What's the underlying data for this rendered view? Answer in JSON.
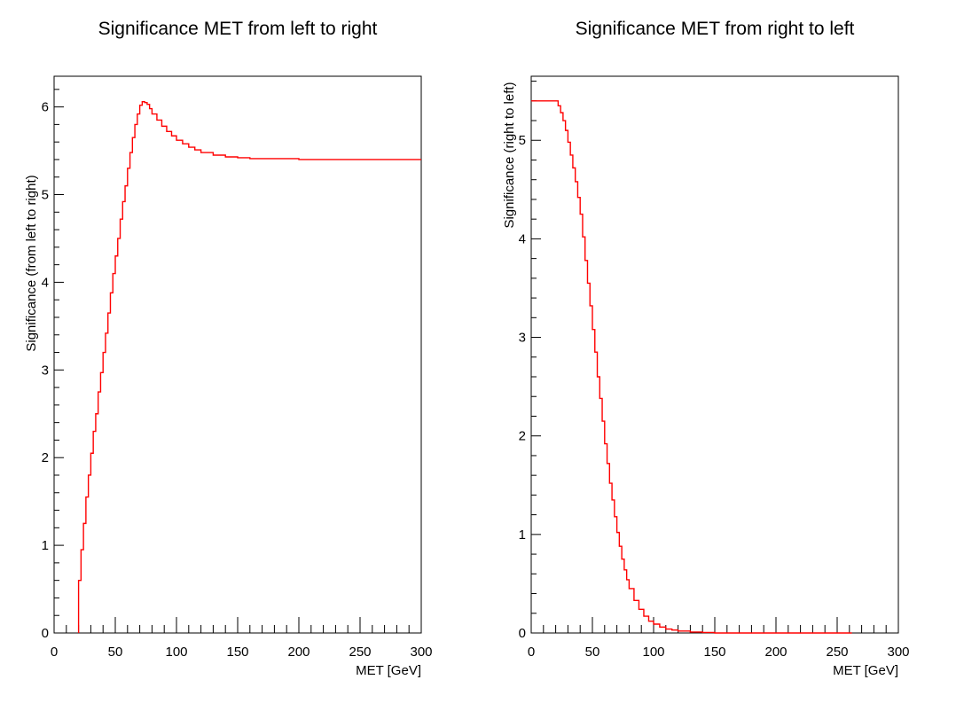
{
  "chart_data": [
    {
      "type": "line",
      "title": "Significance MET from left to right",
      "xlabel": "MET [GeV]",
      "ylabel": "Significance (from left to right)",
      "xlim": [
        0,
        300
      ],
      "ylim": [
        0,
        6.35
      ],
      "x_ticks": [
        0,
        50,
        100,
        150,
        200,
        250,
        300
      ],
      "y_ticks": [
        0,
        1,
        2,
        3,
        4,
        5,
        6
      ],
      "grid": false,
      "legend": "none",
      "line_color": "#ff0000",
      "series": [
        {
          "x": [
            20,
            22,
            24,
            26,
            28,
            30,
            32,
            34,
            36,
            38,
            40,
            42,
            44,
            46,
            48,
            50,
            52,
            54,
            56,
            58,
            60,
            62,
            64,
            66,
            68,
            70,
            72,
            74,
            76,
            78,
            80,
            84,
            88,
            92,
            96,
            100,
            105,
            110,
            115,
            120,
            130,
            140,
            150,
            160,
            180,
            200,
            250,
            300
          ],
          "values": [
            0.6,
            0.95,
            1.25,
            1.55,
            1.8,
            2.05,
            2.3,
            2.5,
            2.75,
            2.97,
            3.2,
            3.42,
            3.65,
            3.88,
            4.1,
            4.3,
            4.5,
            4.72,
            4.92,
            5.1,
            5.3,
            5.48,
            5.65,
            5.8,
            5.92,
            6.02,
            6.06,
            6.05,
            6.03,
            5.98,
            5.92,
            5.85,
            5.78,
            5.72,
            5.67,
            5.62,
            5.58,
            5.54,
            5.51,
            5.48,
            5.45,
            5.43,
            5.42,
            5.41,
            5.41,
            5.4,
            5.4,
            5.4
          ]
        }
      ]
    },
    {
      "type": "line",
      "title": "Significance MET from right to left",
      "xlabel": "MET [GeV]",
      "ylabel": "Significance (right to left)",
      "xlim": [
        0,
        300
      ],
      "ylim": [
        0,
        5.65
      ],
      "x_ticks": [
        0,
        50,
        100,
        150,
        200,
        250,
        300
      ],
      "y_ticks": [
        0,
        1,
        2,
        3,
        4,
        5
      ],
      "grid": false,
      "legend": "none",
      "line_color": "#ff0000",
      "series": [
        {
          "x": [
            0,
            10,
            20,
            22,
            24,
            26,
            28,
            30,
            32,
            34,
            36,
            38,
            40,
            42,
            44,
            46,
            48,
            50,
            52,
            54,
            56,
            58,
            60,
            62,
            64,
            66,
            68,
            70,
            72,
            74,
            76,
            78,
            80,
            84,
            88,
            92,
            96,
            100,
            105,
            110,
            115,
            120,
            130,
            140,
            150,
            200,
            262
          ],
          "values": [
            5.4,
            5.4,
            5.4,
            5.35,
            5.28,
            5.2,
            5.1,
            4.98,
            4.85,
            4.72,
            4.58,
            4.42,
            4.25,
            4.02,
            3.78,
            3.55,
            3.32,
            3.08,
            2.85,
            2.6,
            2.38,
            2.15,
            1.92,
            1.72,
            1.52,
            1.35,
            1.18,
            1.02,
            0.88,
            0.75,
            0.64,
            0.54,
            0.45,
            0.33,
            0.24,
            0.17,
            0.12,
            0.09,
            0.06,
            0.04,
            0.03,
            0.02,
            0.01,
            0.005,
            0.0,
            0.0,
            0.0
          ]
        }
      ]
    }
  ]
}
